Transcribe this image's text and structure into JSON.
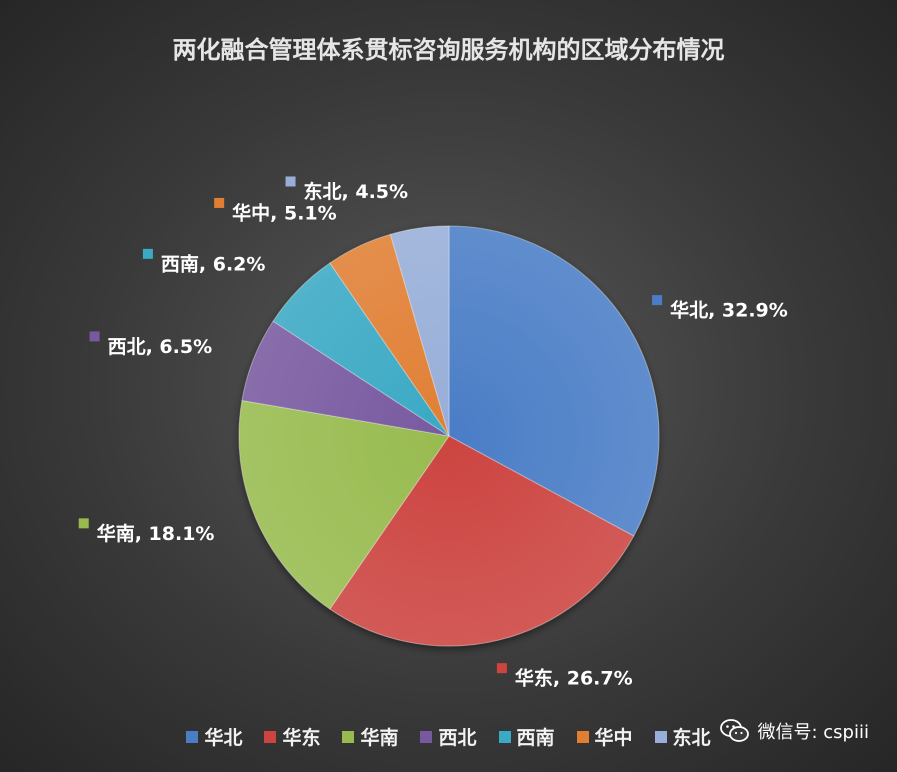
{
  "chart_data": {
    "type": "pie",
    "title": "两化融合管理体系贯标咨询服务机构的区域分布情况",
    "slices": [
      {
        "label": "华北",
        "value": 32.9,
        "display": "32.9%",
        "color": "#4a7dc6"
      },
      {
        "label": "华东",
        "value": 26.7,
        "display": "26.7%",
        "color": "#cc4440"
      },
      {
        "label": "华南",
        "value": 18.1,
        "display": "18.1%",
        "color": "#98bb4f"
      },
      {
        "label": "西北",
        "value": 6.5,
        "display": "6.5%",
        "color": "#7859a0"
      },
      {
        "label": "西南",
        "value": 6.2,
        "display": "6.2%",
        "color": "#3aa9c4"
      },
      {
        "label": "华中",
        "value": 5.1,
        "display": "5.1%",
        "color": "#e07f34"
      },
      {
        "label": "东北",
        "value": 4.5,
        "display": "4.5%",
        "color": "#98aed8"
      }
    ],
    "legend_position": "bottom"
  },
  "watermark": {
    "text": "微信号: cspiii",
    "icon": "wechat-icon"
  }
}
